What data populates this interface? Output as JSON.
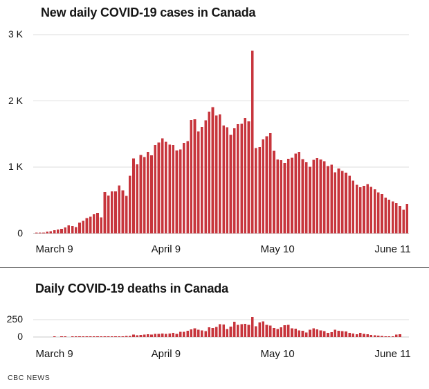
{
  "footer": {
    "credit": "CBC NEWS"
  },
  "chart_data": [
    {
      "type": "bar",
      "name": "cases",
      "title": "New daily COVID-19 cases in Canada",
      "x_start": "March 4",
      "x_end": "June 15",
      "values": [
        8,
        10,
        12,
        25,
        30,
        45,
        60,
        70,
        90,
        120,
        110,
        95,
        160,
        190,
        230,
        250,
        290,
        310,
        240,
        621,
        570,
        633,
        634,
        725,
        650,
        566,
        868,
        1129,
        1043,
        1183,
        1152,
        1233,
        1180,
        1334,
        1371,
        1436,
        1383,
        1341,
        1334,
        1251,
        1268,
        1365,
        1391,
        1714,
        1720,
        1537,
        1608,
        1708,
        1837,
        1906,
        1778,
        1795,
        1628,
        1600,
        1485,
        1584,
        1651,
        1655,
        1746,
        1689,
        2760,
        1290,
        1302,
        1421,
        1467,
        1511,
        1244,
        1113,
        1104,
        1064,
        1126,
        1143,
        1202,
        1231,
        1122,
        1075,
        1007,
        1108,
        1135,
        1113,
        1089,
        1018,
        1038,
        924,
        981,
        941,
        918,
        869,
        795,
        732,
        699,
        719,
        744,
        700,
        665,
        619,
        592,
        540,
        509,
        481,
        453,
        412,
        358,
        447
      ],
      "ylim": [
        0,
        3000
      ],
      "yticks": [
        {
          "value": 0,
          "label": "0"
        },
        {
          "value": 1000,
          "label": "1 K"
        },
        {
          "value": 2000,
          "label": "2 K"
        },
        {
          "value": 3000,
          "label": "3 K"
        }
      ],
      "xticks": [
        {
          "label": "March 9",
          "index": 5
        },
        {
          "label": "April 9",
          "index": 36
        },
        {
          "label": "May 10",
          "index": 67
        },
        {
          "label": "June 11",
          "index": 99
        }
      ],
      "bar_color": "#c7353c",
      "grid": "horizontal",
      "legend": "none"
    },
    {
      "type": "bar",
      "name": "deaths",
      "title": "Daily COVID-19 deaths in Canada",
      "x_start": "March 4",
      "x_end": "June 15",
      "values": [
        0,
        0,
        0,
        0,
        0,
        1,
        0,
        1,
        1,
        0,
        1,
        1,
        4,
        1,
        2,
        2,
        3,
        4,
        5,
        4,
        5,
        9,
        9,
        10,
        12,
        16,
        15,
        35,
        26,
        30,
        34,
        38,
        33,
        47,
        45,
        50,
        47,
        48,
        59,
        45,
        73,
        74,
        90,
        109,
        126,
        103,
        97,
        84,
        141,
        132,
        144,
        184,
        178,
        116,
        152,
        221,
        176,
        187,
        191,
        175,
        290,
        155,
        208,
        224,
        177,
        164,
        128,
        116,
        138,
        169,
        176,
        125,
        118,
        95,
        88,
        63,
        106,
        123,
        110,
        95,
        85,
        58,
        72,
        104,
        92,
        87,
        78,
        62,
        51,
        38,
        59,
        47,
        42,
        30,
        25,
        20,
        15,
        12,
        10,
        8,
        35,
        38,
        0,
        0
      ],
      "ylim": [
        0,
        300
      ],
      "yticks": [
        {
          "value": 0,
          "label": "0"
        },
        {
          "value": 250,
          "label": "250"
        }
      ],
      "xticks": [
        {
          "label": "March 9",
          "index": 5
        },
        {
          "label": "April 9",
          "index": 36
        },
        {
          "label": "May 10",
          "index": 67
        },
        {
          "label": "June 11",
          "index": 99
        }
      ],
      "bar_color": "#c7353c",
      "grid": "horizontal",
      "legend": "none"
    }
  ]
}
